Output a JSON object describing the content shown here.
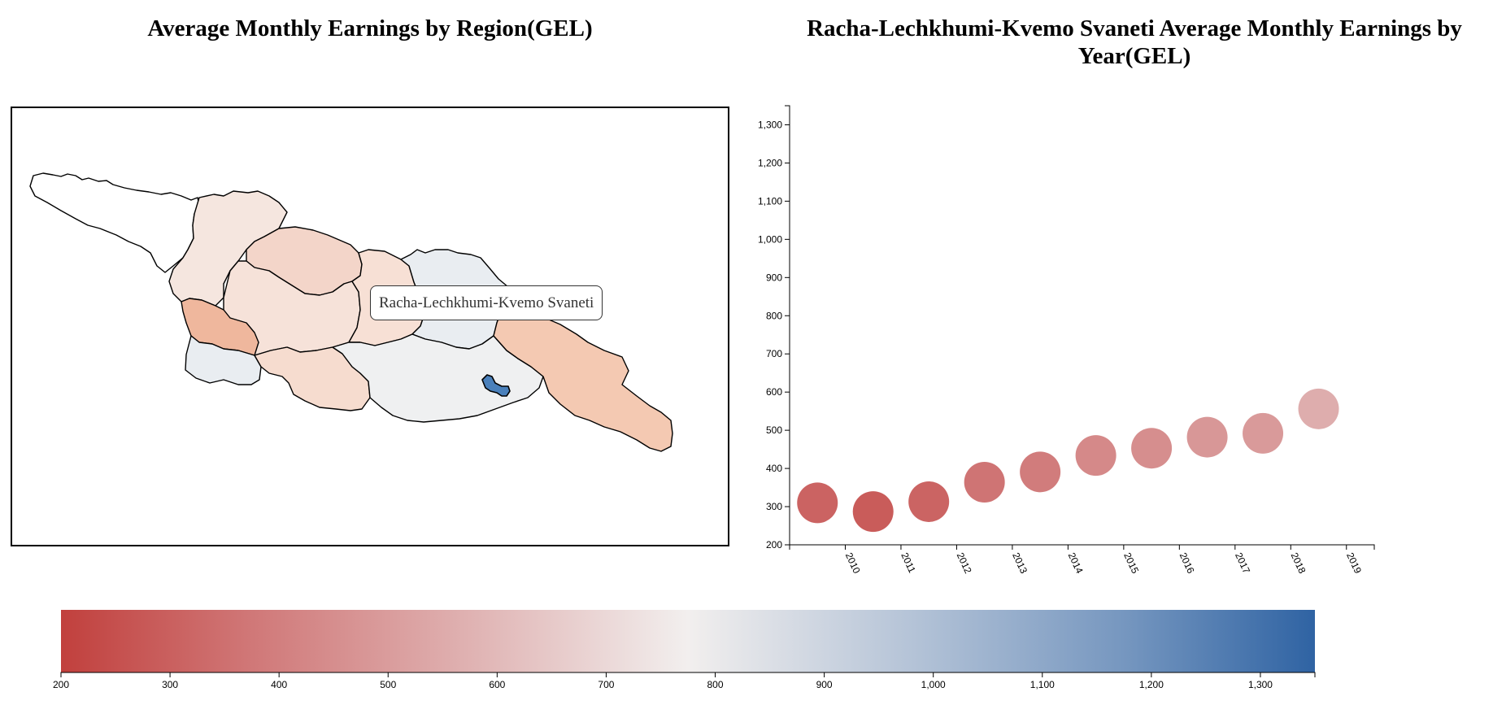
{
  "map": {
    "title": "Average Monthly Earnings by Region(GEL)",
    "tooltip": "Racha-Lechkhumi-Kvemo Svaneti",
    "highlighted_region": "Racha-Lechkhumi-Kvemo Svaneti",
    "colors": {
      "highlight": "#4a80bb",
      "stroke": "#000000",
      "no_data": "#ffffff"
    }
  },
  "chart_data": [
    {
      "type": "scatter",
      "title": "Racha-Lechkhumi-Kvemo Svaneti Average Monthly Earnings by Year(GEL)",
      "x": [
        "2010",
        "2011",
        "2012",
        "2013",
        "2014",
        "2015",
        "2016",
        "2017",
        "2018",
        "2019"
      ],
      "values": [
        310,
        287,
        313,
        364,
        391,
        434,
        453,
        482,
        492,
        556
      ],
      "ylim": [
        200,
        1350
      ],
      "yticks": [
        "200",
        "300",
        "400",
        "500",
        "600",
        "700",
        "800",
        "900",
        "1,000",
        "1,100",
        "1,200",
        "1,300"
      ],
      "color_scale": "RdBu diverging, 200 to 1350"
    },
    {
      "type": "heatmap",
      "title": "",
      "description": "Color legend",
      "domain": [
        200,
        1350
      ],
      "ticks": [
        "200",
        "300",
        "400",
        "500",
        "600",
        "700",
        "800",
        "900",
        "1,000",
        "1,100",
        "1,200",
        "1,300"
      ],
      "colors": [
        "#c1403d",
        "#f2efee",
        "#2f63a3"
      ]
    }
  ]
}
